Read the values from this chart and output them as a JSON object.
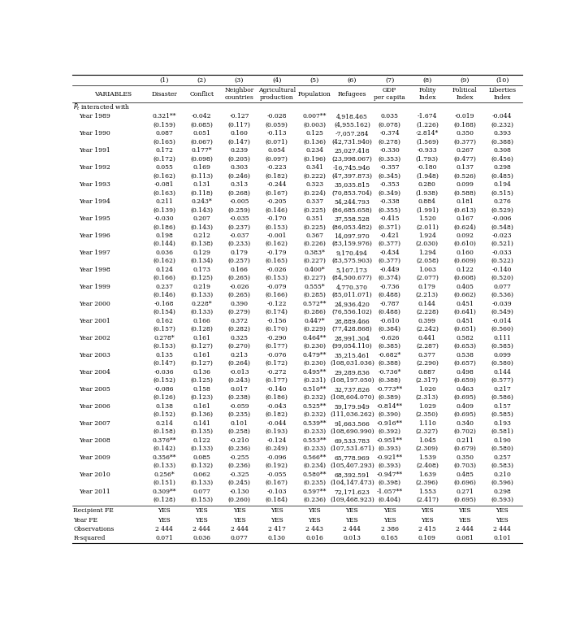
{
  "col_headers": [
    "",
    "(1)",
    "(2)",
    "(3)",
    "(4)",
    "(5)",
    "(6)",
    "(7)",
    "(8)",
    "(9)",
    "(10)"
  ],
  "col_subheaders": [
    "VARIABLES",
    "Disaster",
    "Conflict",
    "Neighbor\ncountries",
    "Agricultural\nproduction",
    "Population",
    "Refugees",
    "GDP\nper capita",
    "Polity\nIndex",
    "Political\nIndex",
    "Liberties\nIndex"
  ],
  "pt_label": "$P_t$ interacted with",
  "rows": [
    [
      "Year 1989",
      "0.321**",
      "-0.042",
      "-0.127",
      "-0.028",
      "0.007**",
      "4,918.465",
      "0.035",
      "-1.674",
      "-0.019",
      "-0.044"
    ],
    [
      "",
      "(0.159)",
      "(0.085)",
      "(0.117)",
      "(0.059)",
      "(0.003)",
      "(4,955.162)",
      "(0.078)",
      "(1.226)",
      "(0.188)",
      "(0.232)"
    ],
    [
      "Year 1990",
      "0.087",
      "0.051",
      "0.160",
      "-0.113",
      "0.125",
      "-7,057.284",
      "-0.374",
      "-2.814*",
      "0.350",
      "0.393"
    ],
    [
      "",
      "(0.165)",
      "(0.067)",
      "(0.147)",
      "(0.071)",
      "(0.136)",
      "(42,731.940)",
      "(0.278)",
      "(1.569)",
      "(0.377)",
      "(0.388)"
    ],
    [
      "Year 1991",
      "0.172",
      "0.177*",
      "0.239",
      "0.054",
      "0.234",
      "25,027.418",
      "-0.330",
      "-0.933",
      "0.267",
      "0.308"
    ],
    [
      "",
      "(0.172)",
      "(0.098)",
      "(0.205)",
      "(0.097)",
      "(0.196)",
      "(23,998.067)",
      "(0.353)",
      "(1.793)",
      "(0.477)",
      "(0.456)"
    ],
    [
      "Year 1992",
      "0.055",
      "0.169",
      "0.303",
      "-0.223",
      "0.341",
      "-16,745.946",
      "-0.357",
      "-0.180",
      "0.137",
      "0.298"
    ],
    [
      "",
      "(0.162)",
      "(0.113)",
      "(0.246)",
      "(0.182)",
      "(0.222)",
      "(47,397.873)",
      "(0.345)",
      "(1.948)",
      "(0.526)",
      "(0.485)"
    ],
    [
      "Year 1993",
      "-0.081",
      "0.131",
      "0.313",
      "-0.244",
      "0.323",
      "35,035.815",
      "-0.353",
      "0.280",
      "0.099",
      "0.194"
    ],
    [
      "",
      "(0.163)",
      "(0.118)",
      "(0.268)",
      "(0.167)",
      "(0.224)",
      "(70,853.704)",
      "(0.349)",
      "(1.938)",
      "(0.588)",
      "(0.515)"
    ],
    [
      "Year 1994",
      "0.211",
      "0.243*",
      "-0.005",
      "-0.205",
      "0.337",
      "54,244.793",
      "-0.338",
      "0.884",
      "0.181",
      "0.276"
    ],
    [
      "",
      "(0.139)",
      "(0.143)",
      "(0.259)",
      "(0.146)",
      "(0.225)",
      "(86,685.658)",
      "(0.355)",
      "(1.991)",
      "(0.613)",
      "(0.529)"
    ],
    [
      "Year 1995",
      "-0.030",
      "0.207",
      "-0.035",
      "-0.170",
      "0.351",
      "37,558.528",
      "-0.415",
      "1.520",
      "0.167",
      "-0.006"
    ],
    [
      "",
      "(0.186)",
      "(0.143)",
      "(0.237)",
      "(0.153)",
      "(0.225)",
      "(86,053.482)",
      "(0.371)",
      "(2.011)",
      "(0.624)",
      "(0.548)"
    ],
    [
      "Year 1996",
      "0.198",
      "0.212",
      "-0.037",
      "-0.001",
      "0.367",
      "14,097.970",
      "-0.421",
      "1.924",
      "0.092",
      "-0.023"
    ],
    [
      "",
      "(0.144)",
      "(0.138)",
      "(0.233)",
      "(0.162)",
      "(0.226)",
      "(83,159.976)",
      "(0.377)",
      "(2.030)",
      "(0.610)",
      "(0.521)"
    ],
    [
      "Year 1997",
      "0.036",
      "0.129",
      "0.179",
      "-0.179",
      "0.383*",
      "9,170.494",
      "-0.434",
      "1.294",
      "0.160",
      "-0.033"
    ],
    [
      "",
      "(0.162)",
      "(0.134)",
      "(0.257)",
      "(0.165)",
      "(0.227)",
      "(83,575.903)",
      "(0.377)",
      "(2.058)",
      "(0.609)",
      "(0.522)"
    ],
    [
      "Year 1998",
      "0.124",
      "0.173",
      "0.166",
      "-0.026",
      "0.400*",
      "5,107.173",
      "-0.449",
      "1.003",
      "0.122",
      "-0.140"
    ],
    [
      "",
      "(0.166)",
      "(0.125)",
      "(0.265)",
      "(0.153)",
      "(0.227)",
      "(84,500.677)",
      "(0.374)",
      "(2.077)",
      "(0.608)",
      "(0.520)"
    ],
    [
      "Year 1999",
      "0.237",
      "0.219",
      "-0.026",
      "-0.079",
      "0.555*",
      "4,770.370",
      "-0.736",
      "0.179",
      "0.405",
      "0.077"
    ],
    [
      "",
      "(0.146)",
      "(0.133)",
      "(0.265)",
      "(0.166)",
      "(0.285)",
      "(85,011.071)",
      "(0.488)",
      "(2.213)",
      "(0.662)",
      "(0.536)"
    ],
    [
      "Year 2000",
      "-0.168",
      "0.228*",
      "0.390",
      "-0.122",
      "0.572**",
      "24,936.420",
      "-0.787",
      "0.144",
      "0.451",
      "-0.039"
    ],
    [
      "",
      "(0.154)",
      "(0.133)",
      "(0.279)",
      "(0.174)",
      "(0.286)",
      "(76,556.102)",
      "(0.488)",
      "(2.228)",
      "(0.641)",
      "(0.549)"
    ],
    [
      "Year 2001",
      "0.162",
      "0.166",
      "0.372",
      "-0.156",
      "0.447*",
      "28,889.466",
      "-0.610",
      "0.399",
      "0.451",
      "-0.014"
    ],
    [
      "",
      "(0.157)",
      "(0.128)",
      "(0.282)",
      "(0.170)",
      "(0.229)",
      "(77,428.868)",
      "(0.384)",
      "(2.242)",
      "(0.651)",
      "(0.560)"
    ],
    [
      "Year 2002",
      "0.278*",
      "0.161",
      "0.325",
      "-0.290",
      "0.464**",
      "28,991.304",
      "-0.626",
      "0.441",
      "0.582",
      "0.111"
    ],
    [
      "",
      "(0.153)",
      "(0.127)",
      "(0.270)",
      "(0.177)",
      "(0.230)",
      "(99,054.110)",
      "(0.385)",
      "(2.287)",
      "(0.653)",
      "(0.585)"
    ],
    [
      "Year 2003",
      "0.135",
      "0.161",
      "0.213",
      "-0.076",
      "0.479**",
      "35,215.461",
      "-0.682*",
      "0.377",
      "0.538",
      "0.099"
    ],
    [
      "",
      "(0.147)",
      "(0.127)",
      "(0.264)",
      "(0.172)",
      "(0.230)",
      "(108,031.036)",
      "(0.388)",
      "(2.290)",
      "(0.657)",
      "(0.580)"
    ],
    [
      "Year 2004",
      "-0.036",
      "0.136",
      "-0.013",
      "-0.272",
      "0.495**",
      "29,289.836",
      "-0.736*",
      "0.887",
      "0.498",
      "0.144"
    ],
    [
      "",
      "(0.152)",
      "(0.125)",
      "(0.243)",
      "(0.177)",
      "(0.231)",
      "(108,197.050)",
      "(0.388)",
      "(2.317)",
      "(0.659)",
      "(0.577)"
    ],
    [
      "Year 2005",
      "-0.086",
      "0.158",
      "0.017",
      "-0.140",
      "0.510**",
      "32,737.826",
      "-0.773**",
      "1.020",
      "0.463",
      "0.217"
    ],
    [
      "",
      "(0.126)",
      "(0.123)",
      "(0.238)",
      "(0.186)",
      "(0.232)",
      "(108,604.070)",
      "(0.389)",
      "(2.313)",
      "(0.695)",
      "(0.586)"
    ],
    [
      "Year 2006",
      "0.138",
      "0.161",
      "-0.059",
      "-0.043",
      "0.525**",
      "59,179.949",
      "-0.814**",
      "1.029",
      "0.409",
      "0.157"
    ],
    [
      "",
      "(0.152)",
      "(0.136)",
      "(0.235)",
      "(0.182)",
      "(0.232)",
      "(111,036.262)",
      "(0.390)",
      "(2.350)",
      "(0.695)",
      "(0.585)"
    ],
    [
      "Year 2007",
      "0.214",
      "0.141",
      "0.101",
      "-0.044",
      "0.539**",
      "91,663.566",
      "-0.916**",
      "1.110",
      "0.340",
      "0.193"
    ],
    [
      "",
      "(0.158)",
      "(0.135)",
      "(0.258)",
      "(0.193)",
      "(0.233)",
      "(108,690.990)",
      "(0.392)",
      "(2.327)",
      "(0.702)",
      "(0.581)"
    ],
    [
      "Year 2008",
      "0.376**",
      "0.122",
      "-0.210",
      "-0.124",
      "0.553**",
      "69,533.783",
      "-0.951**",
      "1.045",
      "0.211",
      "0.190"
    ],
    [
      "",
      "(0.142)",
      "(0.133)",
      "(0.236)",
      "(0.249)",
      "(0.233)",
      "(107,531.671)",
      "(0.393)",
      "(2.309)",
      "(0.679)",
      "(0.580)"
    ],
    [
      "Year 2009",
      "0.356**",
      "0.085",
      "-0.255",
      "-0.096",
      "0.566**",
      "65,778.969",
      "-0.921**",
      "1.539",
      "0.350",
      "0.257"
    ],
    [
      "",
      "(0.133)",
      "(0.132)",
      "(0.236)",
      "(0.192)",
      "(0.234)",
      "(105,407.293)",
      "(0.393)",
      "(2.408)",
      "(0.703)",
      "(0.583)"
    ],
    [
      "Year 2010",
      "0.256*",
      "0.062",
      "-0.325",
      "-0.055",
      "0.580**",
      "68,392.591",
      "-0.947**",
      "1.639",
      "0.485",
      "0.210"
    ],
    [
      "",
      "(0.151)",
      "(0.133)",
      "(0.245)",
      "(0.167)",
      "(0.235)",
      "(104,147.473)",
      "(0.398)",
      "(2.396)",
      "(0.696)",
      "(0.596)"
    ],
    [
      "Year 2011",
      "0.309**",
      "0.077",
      "-0.130",
      "-0.103",
      "0.597**",
      "72,171.623",
      "-1.057**",
      "1.553",
      "0.271",
      "0.298"
    ],
    [
      "",
      "(0.128)",
      "(0.153)",
      "(0.260)",
      "(0.184)",
      "(0.236)",
      "(109,468.923)",
      "(0.404)",
      "(2.417)",
      "(0.695)",
      "(0.593)"
    ]
  ],
  "footer_rows": [
    [
      "Recipient FE",
      "YES",
      "YES",
      "YES",
      "YES",
      "YES",
      "YES",
      "YES",
      "YES",
      "YES",
      "YES"
    ],
    [
      "Year FE",
      "YES",
      "YES",
      "YES",
      "YES",
      "YES",
      "YES",
      "YES",
      "YES",
      "YES",
      "YES"
    ],
    [
      "Observations",
      "2 444",
      "2 444",
      "2 444",
      "2 417",
      "2 443",
      "2 444",
      "2 386",
      "2 415",
      "2 444",
      "2 444"
    ],
    [
      "R-squared",
      "0.071",
      "0.036",
      "0.077",
      "0.130",
      "0.016",
      "0.013",
      "0.165",
      "0.109",
      "0.081",
      "0.101"
    ]
  ]
}
